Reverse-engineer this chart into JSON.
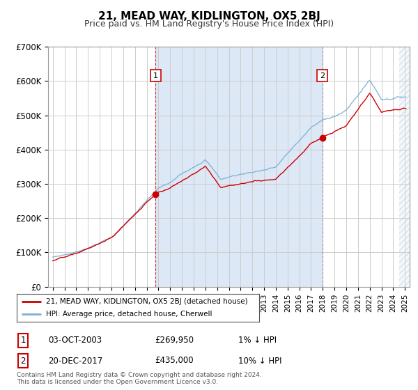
{
  "title": "21, MEAD WAY, KIDLINGTON, OX5 2BJ",
  "subtitle": "Price paid vs. HM Land Registry's House Price Index (HPI)",
  "ylabel_ticks": [
    "£0",
    "£100K",
    "£200K",
    "£300K",
    "£400K",
    "£500K",
    "£600K",
    "£700K"
  ],
  "ytick_values": [
    0,
    100000,
    200000,
    300000,
    400000,
    500000,
    600000,
    700000
  ],
  "ylim": [
    0,
    700000
  ],
  "xlim_start": 1994.6,
  "xlim_end": 2025.4,
  "hpi_color": "#7bafd4",
  "price_color": "#cc0000",
  "vline_color": "#cc0000",
  "shade_color": "#dce8f5",
  "hatch_color": "#c8d8e8",
  "point1_year": 2003.75,
  "point1_value": 269950,
  "point1_label": "1",
  "point2_year": 2017.97,
  "point2_value": 435000,
  "point2_label": "2",
  "legend_label1": "21, MEAD WAY, KIDLINGTON, OX5 2BJ (detached house)",
  "legend_label2": "HPI: Average price, detached house, Cherwell",
  "table_row1": [
    "1",
    "03-OCT-2003",
    "£269,950",
    "1% ↓ HPI"
  ],
  "table_row2": [
    "2",
    "20-DEC-2017",
    "£435,000",
    "10% ↓ HPI"
  ],
  "copyright": "Contains HM Land Registry data © Crown copyright and database right 2024.\nThis data is licensed under the Open Government Licence v3.0.",
  "bg_color": "#ffffff",
  "plot_bg": "#ffffff",
  "grid_color": "#cccccc"
}
